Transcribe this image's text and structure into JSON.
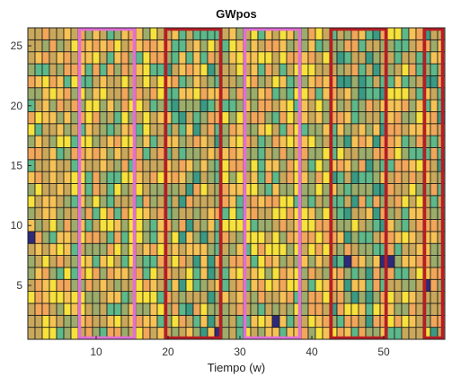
{
  "chart_data": {
    "type": "heatmap",
    "title": "GWpos",
    "xlabel": "Tiempo (w)",
    "ylabel": "",
    "xlim": [
      0.5,
      58.5
    ],
    "ylim": [
      0.5,
      26.5
    ],
    "x_ticks": [
      10,
      20,
      30,
      40,
      50
    ],
    "y_ticks": [
      5,
      10,
      15,
      20,
      25
    ],
    "grid": true,
    "colormap": [
      "#f7e13c",
      "#f6c255",
      "#f2a65a",
      "#c9a85c",
      "#9cac6b",
      "#5db88a",
      "#3a9a84"
    ],
    "outlier_color": "#2e2a7a",
    "outlier_cells": [
      {
        "x": 1,
        "y": 9
      },
      {
        "x": 45,
        "y": 7
      },
      {
        "x": 50,
        "y": 7
      },
      {
        "x": 51,
        "y": 7
      },
      {
        "x": 56,
        "y": 5
      },
      {
        "x": 35,
        "y": 2
      },
      {
        "x": 27,
        "y": 1
      }
    ],
    "highlight_regions": [
      {
        "x_range": [
          8,
          15
        ],
        "y_range": [
          1,
          26
        ],
        "color": "#e36ed8"
      },
      {
        "x_range": [
          20,
          27
        ],
        "y_range": [
          1,
          26
        ],
        "color": "#b81c24"
      },
      {
        "x_range": [
          31,
          38
        ],
        "y_range": [
          1,
          26
        ],
        "color": "#e36ed8"
      },
      {
        "x_range": [
          43,
          50
        ],
        "y_range": [
          1,
          26
        ],
        "color": "#b81c24"
      },
      {
        "x_range": [
          56,
          58
        ],
        "y_range": [
          1,
          26
        ],
        "color": "#b81c24"
      }
    ]
  }
}
